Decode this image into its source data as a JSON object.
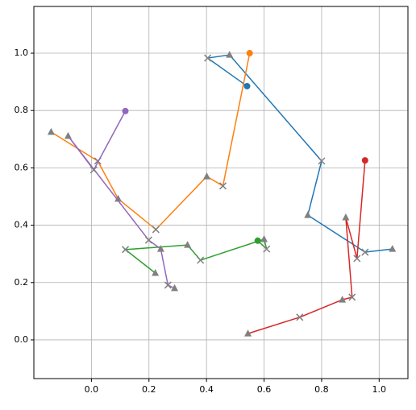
{
  "chart_data": {
    "type": "line",
    "xlim": [
      -0.2,
      1.1
    ],
    "ylim": [
      -0.135,
      1.163
    ],
    "xticks": [
      {
        "value": 0,
        "label": "0.0"
      },
      0.2,
      0.4,
      0.6,
      0.8,
      {
        "value": 1,
        "label": "1.0"
      }
    ],
    "yticks": [
      {
        "value": 0,
        "label": "0.0"
      },
      0.2,
      0.4,
      0.6,
      0.8,
      {
        "value": 1,
        "label": "1.0"
      }
    ],
    "grid": true,
    "series": [
      {
        "color": "#1f77b4",
        "x": [
          0.541,
          0.404,
          0.48,
          0.8,
          0.752,
          0.951,
          1.046
        ],
        "y": [
          0.885,
          0.983,
          0.994,
          0.624,
          0.435,
          0.306,
          0.317
        ]
      },
      {
        "color": "#ff7f0e",
        "x": [
          0.55,
          0.457,
          0.401,
          0.224,
          0.093,
          0.022,
          -0.14
        ],
        "y": [
          1.0,
          0.537,
          0.57,
          0.385,
          0.492,
          0.624,
          0.725
        ]
      },
      {
        "color": "#2ca02c",
        "x": [
          0.578,
          0.609,
          0.6,
          0.379,
          0.334,
          0.118,
          0.222
        ],
        "y": [
          0.346,
          0.317,
          0.351,
          0.278,
          0.331,
          0.315,
          0.233
        ]
      },
      {
        "color": "#d62728",
        "x": [
          0.951,
          0.923,
          0.884,
          0.906,
          0.872,
          0.724,
          0.544
        ],
        "y": [
          0.626,
          0.284,
          0.427,
          0.149,
          0.14,
          0.079,
          0.022
        ]
      },
      {
        "color": "#9467bd",
        "x": [
          0.118,
          0.008,
          -0.081,
          0.199,
          0.241,
          0.266,
          0.289
        ],
        "y": [
          0.798,
          0.593,
          0.711,
          0.348,
          0.317,
          0.191,
          0.18
        ]
      }
    ]
  }
}
